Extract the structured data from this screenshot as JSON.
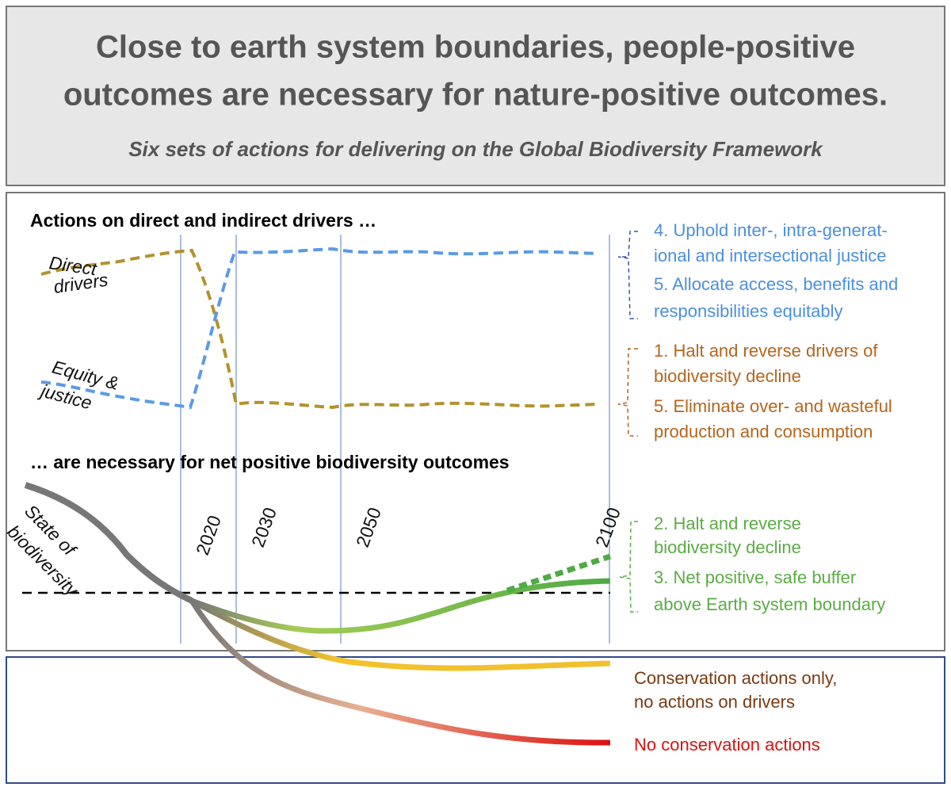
{
  "header": {
    "title": [
      "Close to earth system boundaries, people-positive",
      "outcomes are necessary for nature-positive outcomes."
    ],
    "subtitle": "Six sets of actions for delivering on the Global Biodiversity Framework"
  },
  "sections": {
    "drivers": "Actions on direct and indirect drivers …",
    "outcomes": "… are necessary for net positive biodiversity outcomes"
  },
  "curve_labels": {
    "direct": [
      "Direct",
      "drivers"
    ],
    "equity": [
      "Equity &",
      "justice"
    ],
    "state": [
      "State of",
      "biodiversity"
    ]
  },
  "years": [
    "2020",
    "2030",
    "2050",
    "2100"
  ],
  "actions": {
    "justice": [
      "4. Uphold inter-, intra-generat-",
      "ional and intersectional justice",
      "5. Allocate access, benefits and",
      "responsibilities equitably"
    ],
    "drivers": [
      "1. Halt and reverse drivers of",
      "biodiversity decline",
      "5. Eliminate over- and wasteful",
      "production and consumption"
    ],
    "biodiversity": [
      "2. Halt and reverse",
      "biodiversity decline",
      "3. Net positive, safe buffer",
      "above Earth system boundary"
    ]
  },
  "scenarios": {
    "conservation_only": [
      "Conservation actions only,",
      "no actions on drivers"
    ],
    "none": "No conservation actions"
  }
}
